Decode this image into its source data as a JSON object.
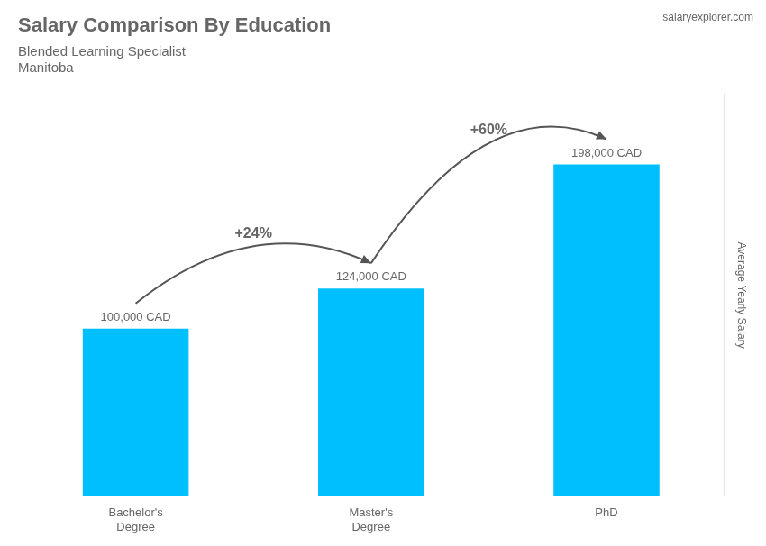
{
  "chart_data": {
    "type": "bar",
    "title": "Salary Comparison By Education",
    "subtitle": "Blended Learning Specialist",
    "ylabel": "Average Yearly Salary",
    "categories": [
      "Bachelor's\nDegree",
      "Master's\nDegree",
      "PhD"
    ],
    "values": [
      100000,
      124000,
      198000
    ],
    "value_labels": [
      "100,000 CAD",
      "124,000 CAD",
      "198,000 CAD"
    ],
    "color": "#00BFFF",
    "ylim": [
      0,
      240000
    ],
    "grid": false,
    "tick_labels": "x",
    "data_labels": true,
    "annotations": [
      "Manitoba",
      "salaryexplorer.com",
      {
        "text": "+24%",
        "from": "Bachelor's\nDegree",
        "to": "Master's\nDegree"
      },
      {
        "text": "+60%",
        "from": "Master's\nDegree",
        "to": "PhD"
      }
    ]
  }
}
